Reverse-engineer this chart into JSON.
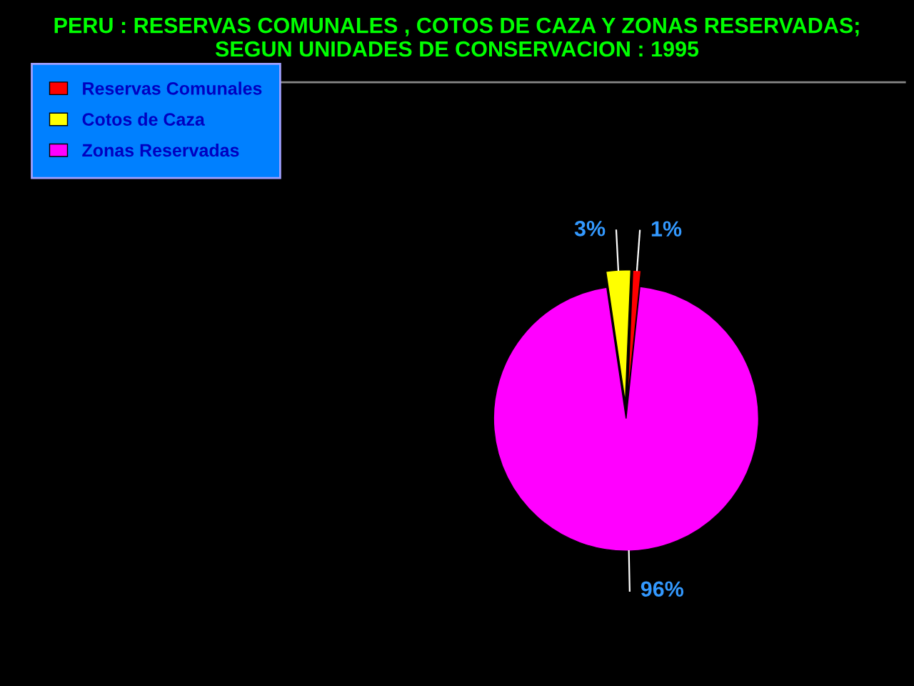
{
  "chart_data": {
    "type": "pie",
    "title": "PERU : RESERVAS COMUNALES , COTOS DE CAZA Y ZONAS RESERVADAS;\nSEGUN UNIDADES DE CONSERVACION : 1995",
    "categories": [
      "Reservas Comunales",
      "Cotos de Caza",
      "Zonas Reservadas"
    ],
    "values": [
      1,
      3,
      96
    ],
    "colors": [
      "#ff0000",
      "#ffff00",
      "#ff00ff"
    ],
    "value_labels": [
      "1%",
      "3%",
      "96%"
    ],
    "legend": "top left"
  }
}
